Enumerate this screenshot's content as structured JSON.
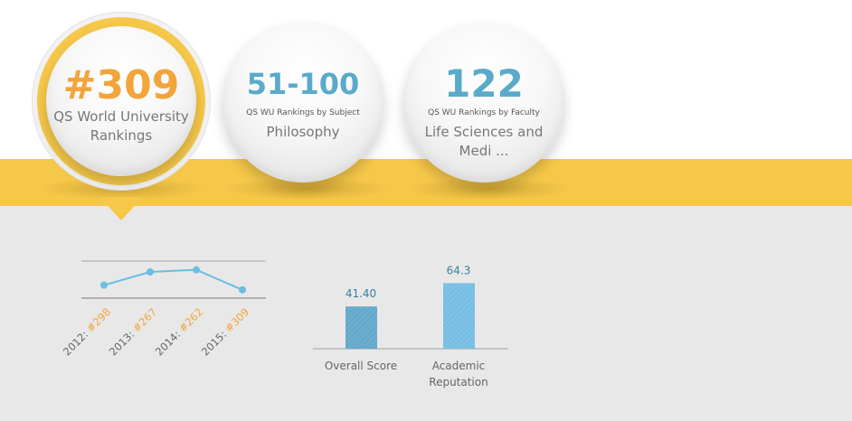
{
  "colors": {
    "accent_yellow": "#f6c84a",
    "rank_orange": "#f3a43b",
    "rank_blue": "#5aaac9",
    "line_blue": "#6bbde2",
    "bar_dark": "#6aaed0",
    "bar_light": "#7ec3e6"
  },
  "rankings": [
    {
      "value": "#309",
      "caption": "",
      "label": "QS World University Rankings"
    },
    {
      "value": "51-100",
      "caption": "QS WU Rankings by Subject",
      "label": "Philosophy"
    },
    {
      "value": "122",
      "caption": "QS WU Rankings by Faculty",
      "label": "Life Sciences and Medi ..."
    }
  ],
  "chart_data": [
    {
      "type": "line",
      "x": [
        "2012",
        "2013",
        "2014",
        "2015"
      ],
      "tick_labels": [
        {
          "year": "2012:",
          "rank": "#298"
        },
        {
          "year": "2013:",
          "rank": "#267"
        },
        {
          "year": "2014:",
          "rank": "#262"
        },
        {
          "year": "2015:",
          "rank": "#309"
        }
      ],
      "values": [
        298,
        267,
        262,
        309
      ],
      "y_inverted": true,
      "ylim": [
        250,
        320
      ],
      "grid": true
    },
    {
      "type": "bar",
      "categories": [
        "Overall Score",
        "Academic Reputation"
      ],
      "values": [
        41.4,
        64.3
      ],
      "data_labels": [
        "41.40",
        "64.3"
      ],
      "ylim": [
        0,
        100
      ],
      "grid": false
    }
  ]
}
